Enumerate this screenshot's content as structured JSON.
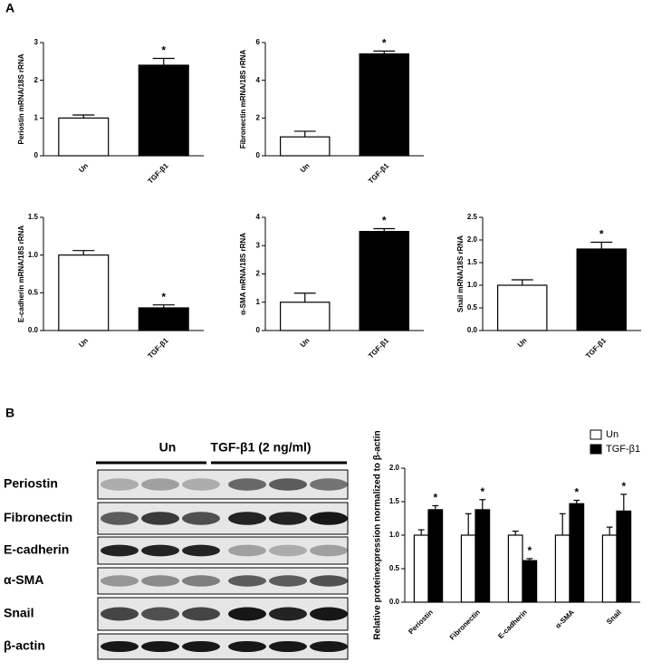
{
  "panel_labels": [
    "A",
    "B"
  ],
  "blot": {
    "groups": [
      "Un",
      "TGF-β1 (2 ng/ml)"
    ],
    "rows": [
      "Periostin",
      "Fibronectin",
      "E-cadherin",
      "α-SMA",
      "Snail",
      "β-actin"
    ]
  },
  "chart_data": [
    {
      "type": "bar",
      "y_label": "Periostin mRNA/18S rRNA",
      "categories": [
        "Un",
        "TGF-β1"
      ],
      "values": [
        1.0,
        2.4
      ],
      "errors": [
        0.08,
        0.18
      ],
      "value_annotations": [
        null,
        "*"
      ],
      "colors": [
        "#ffffff",
        "#000000"
      ],
      "ylim": [
        0,
        3
      ],
      "yticks": [
        0,
        1,
        2,
        3
      ]
    },
    {
      "type": "bar",
      "y_label": "Fibronectin mRNA/18S rRNA",
      "categories": [
        "Un",
        "TGF-β1"
      ],
      "values": [
        1.0,
        5.4
      ],
      "errors": [
        0.3,
        0.15
      ],
      "value_annotations": [
        null,
        "*"
      ],
      "colors": [
        "#ffffff",
        "#000000"
      ],
      "ylim": [
        0,
        6
      ],
      "yticks": [
        0,
        2,
        4,
        6
      ]
    },
    {
      "type": "bar",
      "y_label": "E-cadherin mRNA/18S rRNA",
      "categories": [
        "Un",
        "TGF-β1"
      ],
      "values": [
        1.0,
        0.3
      ],
      "errors": [
        0.06,
        0.04
      ],
      "value_annotations": [
        null,
        "*"
      ],
      "colors": [
        "#ffffff",
        "#000000"
      ],
      "ylim": [
        0,
        1.5
      ],
      "yticks": [
        {
          "value": 0,
          "label": "0.0"
        },
        0.5,
        {
          "value": 1,
          "label": "1.0"
        },
        1.5
      ]
    },
    {
      "type": "bar",
      "y_label": "α-SMA mRNA/18S rRNA",
      "categories": [
        "Un",
        "TGF-β1"
      ],
      "values": [
        1.0,
        3.5
      ],
      "errors": [
        0.32,
        0.1
      ],
      "value_annotations": [
        null,
        "*"
      ],
      "colors": [
        "#ffffff",
        "#000000"
      ],
      "ylim": [
        0,
        4
      ],
      "yticks": [
        0,
        1,
        2,
        3,
        4
      ]
    },
    {
      "type": "bar",
      "y_label": "Snail mRNA/18S rRNA",
      "categories": [
        "Un",
        "TGF-β1"
      ],
      "values": [
        1.0,
        1.8
      ],
      "errors": [
        0.12,
        0.15
      ],
      "value_annotations": [
        null,
        "*"
      ],
      "colors": [
        "#ffffff",
        "#000000"
      ],
      "ylim": [
        0,
        2.5
      ],
      "yticks": [
        {
          "value": 0,
          "label": "0.0"
        },
        0.5,
        {
          "value": 1,
          "label": "1.0"
        },
        1.5,
        {
          "value": 2,
          "label": "2.0"
        },
        2.5
      ]
    },
    {
      "type": "grouped_bar",
      "y_label": "Relative proteinexpression normalized to β-actin",
      "categories": [
        "Periostin",
        "Fibronectin",
        "E-cadherin",
        "α-SMA",
        "Snail"
      ],
      "series": [
        {
          "name": "Un",
          "color": "#ffffff",
          "values": [
            1,
            1,
            1,
            1,
            1
          ],
          "errors": [
            0.08,
            0.32,
            0.06,
            0.32,
            0.12
          ]
        },
        {
          "name": "TGF-β1",
          "color": "#000000",
          "values": [
            1.38,
            1.38,
            0.62,
            1.47,
            1.36
          ],
          "errors": [
            0.06,
            0.15,
            0.03,
            0.05,
            0.25
          ],
          "value_annotations": [
            "*",
            "*",
            "*",
            "*",
            "*"
          ]
        }
      ],
      "ylim": [
        0,
        2
      ],
      "yticks": [
        {
          "value": 0,
          "label": "0.0"
        },
        0.5,
        {
          "value": 1,
          "label": "1.0"
        },
        1.5,
        {
          "value": 2,
          "label": "2.0"
        }
      ],
      "legend": "top-right"
    }
  ]
}
